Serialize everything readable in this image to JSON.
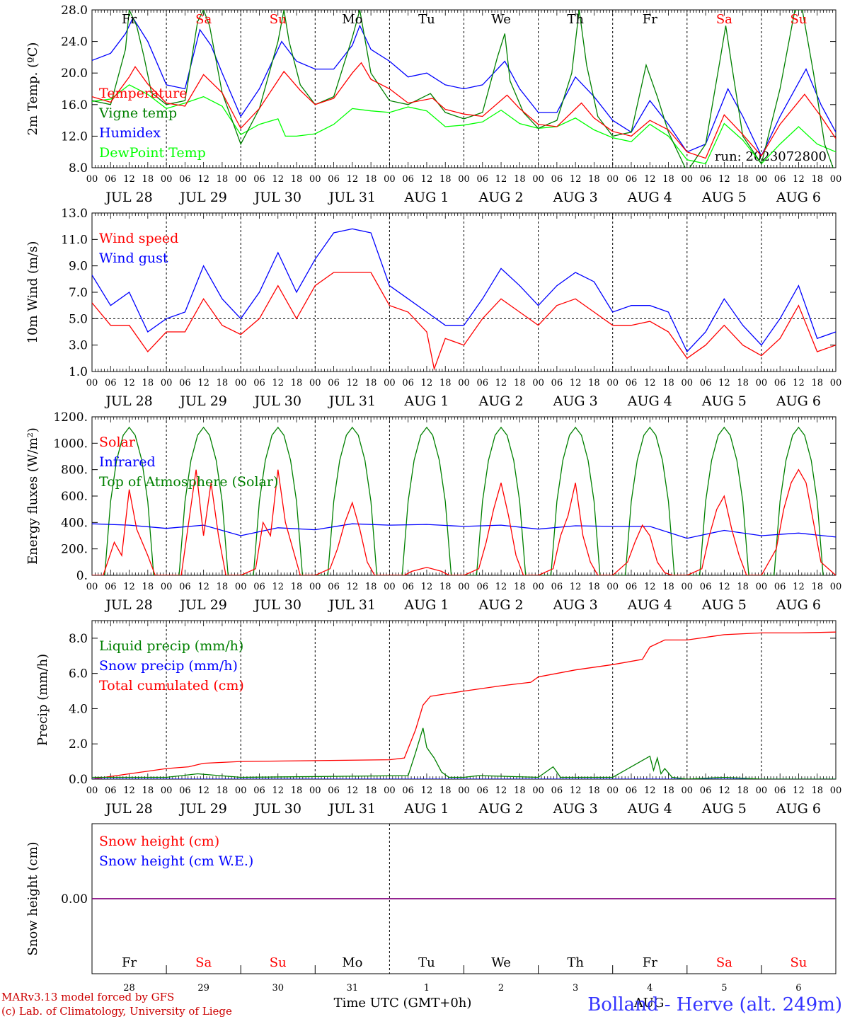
{
  "meteogram": {
    "days": [
      "JUL 28",
      "JUL 29",
      "JUL 30",
      "JUL 31",
      "AUG  1",
      "AUG  2",
      "AUG  3",
      "AUG  4",
      "AUG  5",
      "AUG  6"
    ],
    "weekdays": [
      "Fr",
      "Sa",
      "Su",
      "Mo",
      "Tu",
      "We",
      "Th",
      "Fr",
      "Sa",
      "Su"
    ],
    "day_numbers": [
      "28",
      "29",
      "30",
      "31",
      "1",
      "2",
      "3",
      "4",
      "5",
      "6"
    ],
    "hour_labels": [
      "00",
      "06",
      "12",
      "18"
    ],
    "final_hour_label": "00",
    "x_axis_label": "Time UTC (GMT+0h)",
    "month_label": "AUG",
    "run_label": "run: 2023072800",
    "station_label": "Bolland - Herve (alt. 249m)",
    "credit_lines": [
      "MARv3.13 model forced by GFS",
      "(c) Lab. of Climatology, University of Liege"
    ],
    "colors": {
      "red": "#ff0000",
      "dark_green": "#008000",
      "blue": "#0000ff",
      "light_green": "#00ff00",
      "purple": "#800080",
      "credit": "#cc0000",
      "station": "#3333ff"
    }
  },
  "chart_data": [
    {
      "type": "line",
      "ylabel": "2m Temp. (ºC)",
      "ylim": [
        8,
        28
      ],
      "yticks": [
        "8.0",
        "12.0",
        "16.0",
        "20.0",
        "24.0",
        "28.0"
      ],
      "series": [
        {
          "name": "Temperature",
          "color": "#ff0000",
          "x_days": [
            0,
            0.25,
            0.5,
            0.58,
            0.75,
            1.0,
            1.25,
            1.5,
            1.75,
            2.0,
            2.25,
            2.58,
            2.8,
            3.0,
            3.25,
            3.5,
            3.62,
            3.75,
            4.0,
            4.25,
            4.58,
            4.75,
            5.0,
            5.25,
            5.58,
            5.75,
            6.0,
            6.25,
            6.58,
            6.75,
            7.0,
            7.25,
            7.5,
            7.75,
            8.0,
            8.25,
            8.5,
            8.75,
            9.0,
            9.25,
            9.58,
            9.8,
            10.0
          ],
          "values": [
            17.0,
            16.3,
            19.5,
            20.8,
            18.6,
            16.2,
            15.8,
            19.8,
            17.5,
            13.0,
            15.5,
            20.2,
            17.8,
            16.0,
            16.8,
            20.0,
            21.3,
            19.2,
            18.0,
            16.2,
            16.8,
            15.4,
            14.8,
            14.5,
            17.2,
            15.5,
            13.5,
            13.2,
            16.2,
            14.3,
            12.6,
            12.0,
            14.0,
            12.8,
            10.0,
            9.2,
            14.7,
            12.2,
            9.5,
            13.5,
            17.3,
            14.5,
            11.7
          ]
        },
        {
          "name": "Vigne temp",
          "color": "#008000",
          "x_days": [
            0,
            0.25,
            0.45,
            0.5,
            0.6,
            0.7,
            0.8,
            1.0,
            1.25,
            1.42,
            1.5,
            1.58,
            1.75,
            2.0,
            2.25,
            2.5,
            2.58,
            2.65,
            2.8,
            3.0,
            3.25,
            3.5,
            3.6,
            3.75,
            4.0,
            4.25,
            4.55,
            4.75,
            5.0,
            5.25,
            5.45,
            5.55,
            5.62,
            5.8,
            6.0,
            6.25,
            6.45,
            6.55,
            6.65,
            6.8,
            7.0,
            7.25,
            7.45,
            7.6,
            7.75,
            8.0,
            8.25,
            8.45,
            8.52,
            8.6,
            8.75,
            9.0,
            9.25,
            9.45,
            9.55,
            9.7,
            9.85,
            10.0
          ],
          "values": [
            16.5,
            16.0,
            23.0,
            28.0,
            26.0,
            22.0,
            17.5,
            16.0,
            16.5,
            26.5,
            28.0,
            26.0,
            17.5,
            11.0,
            15.5,
            24.0,
            28.0,
            24.0,
            18.5,
            16.0,
            17.0,
            24.5,
            28.0,
            20.0,
            16.5,
            16.0,
            17.4,
            15.0,
            14.2,
            15.0,
            22.0,
            25.0,
            19.0,
            15.0,
            13.0,
            14.0,
            20.0,
            28.0,
            21.0,
            14.5,
            12.0,
            12.5,
            21.0,
            17.0,
            12.5,
            7.5,
            11.0,
            22.0,
            26.0,
            21.0,
            12.0,
            8.5,
            18.0,
            28.0,
            28.0,
            20.0,
            11.0,
            7.0
          ]
        },
        {
          "name": "Humidex",
          "color": "#0000ff",
          "x_days": [
            0,
            0.25,
            0.45,
            0.55,
            0.75,
            1.0,
            1.25,
            1.45,
            1.6,
            1.75,
            2.0,
            2.25,
            2.55,
            2.75,
            3.0,
            3.25,
            3.5,
            3.6,
            3.75,
            4.0,
            4.25,
            4.5,
            4.75,
            5.0,
            5.25,
            5.55,
            5.75,
            6.0,
            6.25,
            6.5,
            6.75,
            7.0,
            7.25,
            7.5,
            7.75,
            8.0,
            8.25,
            8.55,
            8.75,
            9.0,
            9.25,
            9.6,
            9.8,
            10.0
          ],
          "values": [
            21.6,
            22.5,
            25.0,
            27.0,
            24.0,
            18.5,
            18.0,
            25.5,
            23.5,
            20.0,
            14.5,
            18.0,
            24.0,
            21.5,
            20.5,
            20.5,
            23.5,
            26.0,
            23.0,
            21.5,
            19.5,
            20.0,
            18.5,
            18.0,
            18.5,
            21.5,
            18.0,
            15.0,
            15.0,
            19.5,
            17.0,
            14.0,
            12.5,
            16.5,
            13.5,
            10.0,
            11.0,
            18.0,
            14.5,
            9.5,
            14.5,
            20.5,
            16.0,
            12.5
          ]
        },
        {
          "name": "DewPoint Temp",
          "color": "#00ff00",
          "x_days": [
            0,
            0.25,
            0.5,
            0.75,
            1.0,
            1.25,
            1.5,
            1.75,
            2.0,
            2.25,
            2.5,
            2.6,
            2.75,
            3.0,
            3.25,
            3.5,
            3.75,
            4.0,
            4.25,
            4.5,
            4.75,
            5.0,
            5.25,
            5.5,
            5.75,
            6.0,
            6.25,
            6.5,
            6.75,
            7.0,
            7.25,
            7.5,
            7.75,
            8.0,
            8.25,
            8.5,
            8.75,
            9.0,
            9.25,
            9.5,
            9.75,
            10.0
          ],
          "values": [
            16.4,
            16.7,
            18.5,
            17.3,
            15.5,
            16.2,
            17.0,
            15.8,
            12.2,
            13.5,
            14.2,
            12.0,
            12.0,
            12.3,
            13.5,
            15.5,
            15.2,
            15.0,
            15.7,
            15.2,
            13.2,
            13.4,
            13.8,
            15.3,
            13.6,
            13.0,
            13.2,
            14.3,
            12.8,
            11.8,
            11.3,
            13.5,
            12.0,
            9.0,
            8.5,
            13.6,
            11.5,
            8.5,
            11.0,
            13.2,
            11.0,
            10.0
          ]
        }
      ]
    },
    {
      "type": "line",
      "ylabel": "10m Wind (m/s)",
      "ylim": [
        1,
        13
      ],
      "yticks": [
        "1.0",
        "3.0",
        "5.0",
        "7.0",
        "9.0",
        "11.0",
        "13.0"
      ],
      "reference_line": 5.0,
      "series": [
        {
          "name": "Wind speed",
          "color": "#ff0000",
          "x_days": [
            0,
            0.25,
            0.5,
            0.75,
            1.0,
            1.25,
            1.5,
            1.75,
            2.0,
            2.25,
            2.5,
            2.75,
            3.0,
            3.25,
            3.5,
            3.75,
            4.0,
            4.25,
            4.5,
            4.6,
            4.75,
            5.0,
            5.25,
            5.5,
            5.75,
            6.0,
            6.25,
            6.5,
            6.75,
            7.0,
            7.25,
            7.5,
            7.75,
            8.0,
            8.25,
            8.5,
            8.75,
            9.0,
            9.25,
            9.5,
            9.75,
            10.0
          ],
          "values": [
            6.2,
            4.5,
            4.5,
            2.5,
            4.0,
            4.0,
            6.5,
            4.5,
            3.8,
            5.0,
            7.5,
            5.0,
            7.5,
            8.5,
            8.5,
            8.5,
            6.0,
            5.5,
            4.0,
            1.2,
            3.5,
            3.0,
            5.0,
            6.5,
            5.5,
            4.5,
            6.0,
            6.5,
            5.5,
            4.5,
            4.5,
            4.8,
            4.0,
            2.0,
            3.0,
            4.5,
            3.0,
            2.2,
            3.5,
            6.0,
            2.5,
            3.0
          ]
        },
        {
          "name": "Wind gust",
          "color": "#0000ff",
          "x_days": [
            0,
            0.25,
            0.5,
            0.75,
            1.0,
            1.25,
            1.5,
            1.75,
            2.0,
            2.25,
            2.5,
            2.75,
            3.0,
            3.25,
            3.5,
            3.75,
            4.0,
            4.25,
            4.5,
            4.75,
            5.0,
            5.25,
            5.5,
            5.75,
            6.0,
            6.25,
            6.5,
            6.75,
            7.0,
            7.25,
            7.5,
            7.75,
            8.0,
            8.25,
            8.5,
            8.75,
            9.0,
            9.25,
            9.5,
            9.75,
            10.0
          ],
          "values": [
            8.3,
            6.0,
            7.0,
            4.0,
            5.0,
            5.5,
            9.0,
            6.5,
            5.0,
            7.0,
            10.0,
            7.0,
            9.5,
            11.5,
            11.8,
            11.5,
            7.5,
            6.5,
            5.5,
            4.5,
            4.5,
            6.5,
            8.8,
            7.5,
            6.0,
            7.5,
            8.5,
            7.8,
            5.5,
            6.0,
            6.0,
            5.5,
            2.5,
            4.0,
            6.5,
            4.5,
            3.0,
            5.0,
            7.5,
            3.5,
            4.0
          ]
        }
      ]
    },
    {
      "type": "line",
      "ylabel": "Energy fluxes (W/m²)",
      "ylim": [
        0,
        1200
      ],
      "yticks": [
        "0.",
        "200.",
        "400.",
        "600.",
        "800.",
        "1000.",
        "1200."
      ],
      "series": [
        {
          "name": "Solar",
          "color": "#ff0000",
          "x_days": [
            0,
            0.15,
            0.3,
            0.4,
            0.5,
            0.6,
            0.75,
            0.85,
            1.0,
            1.2,
            1.3,
            1.4,
            1.5,
            1.6,
            1.7,
            1.8,
            2.0,
            2.2,
            2.3,
            2.4,
            2.5,
            2.6,
            2.7,
            2.8,
            3.0,
            3.2,
            3.3,
            3.4,
            3.5,
            3.6,
            3.7,
            3.8,
            4.0,
            4.2,
            4.3,
            4.5,
            4.7,
            4.8,
            5.0,
            5.2,
            5.3,
            5.4,
            5.5,
            5.6,
            5.7,
            5.8,
            6.0,
            6.2,
            6.3,
            6.4,
            6.5,
            6.6,
            6.7,
            6.8,
            7.0,
            7.2,
            7.3,
            7.4,
            7.5,
            7.6,
            7.7,
            7.8,
            8.0,
            8.2,
            8.3,
            8.4,
            8.5,
            8.6,
            8.7,
            8.8,
            9.0,
            9.2,
            9.3,
            9.4,
            9.5,
            9.6,
            9.7,
            9.8,
            10.0
          ],
          "values": [
            0,
            0,
            250,
            150,
            650,
            350,
            150,
            0,
            0,
            0,
            400,
            800,
            300,
            700,
            300,
            0,
            0,
            50,
            400,
            300,
            800,
            400,
            200,
            0,
            0,
            50,
            200,
            400,
            550,
            350,
            100,
            0,
            0,
            0,
            30,
            60,
            30,
            0,
            0,
            50,
            250,
            500,
            700,
            450,
            150,
            0,
            0,
            50,
            300,
            450,
            700,
            300,
            100,
            0,
            0,
            100,
            250,
            380,
            300,
            100,
            20,
            0,
            0,
            50,
            300,
            500,
            600,
            350,
            150,
            0,
            0,
            200,
            500,
            700,
            800,
            700,
            400,
            100,
            0
          ]
        },
        {
          "name": "Infrared",
          "color": "#0000ff",
          "x_days": [
            0,
            0.5,
            1.0,
            1.5,
            2.0,
            2.5,
            3.0,
            3.5,
            4.0,
            4.5,
            5.0,
            5.5,
            6.0,
            6.5,
            7.0,
            7.5,
            8.0,
            8.5,
            9.0,
            9.5,
            10.0
          ],
          "values": [
            390,
            380,
            355,
            380,
            300,
            360,
            345,
            390,
            380,
            385,
            370,
            380,
            350,
            375,
            370,
            370,
            280,
            340,
            300,
            320,
            290
          ]
        },
        {
          "name": "Top of Atmosphere (Solar)",
          "color": "#008000",
          "x_days": [
            0.17,
            0.25,
            0.33,
            0.42,
            0.5,
            0.58,
            0.67,
            0.75,
            0.83
          ],
          "values": [
            0,
            560,
            870,
            1060,
            1120,
            1060,
            870,
            560,
            0
          ],
          "repeats_daily": true
        }
      ]
    },
    {
      "type": "line",
      "ylabel": "Precip (mm/h)",
      "ylim": [
        0,
        9
      ],
      "yticks": [
        "0.0",
        "2.0",
        "4.0",
        "6.0",
        "8.0"
      ],
      "series": [
        {
          "name": "Liquid precip (mm/h)",
          "color": "#008000",
          "x_days": [
            0,
            1.0,
            1.42,
            2.0,
            4.25,
            4.35,
            4.45,
            4.5,
            4.55,
            4.6,
            4.7,
            4.8,
            5.0,
            5.2,
            6.0,
            6.2,
            6.3,
            7.0,
            7.5,
            7.55,
            7.6,
            7.65,
            7.7,
            7.8,
            8.0,
            8.5,
            9.0,
            10.0
          ],
          "values": [
            0.1,
            0.1,
            0.3,
            0.1,
            0.2,
            1.5,
            2.9,
            1.8,
            1.5,
            1.2,
            0.4,
            0.1,
            0.1,
            0.2,
            0.1,
            0.7,
            0.1,
            0.1,
            1.3,
            0.5,
            1.2,
            0.3,
            0.6,
            0.1,
            0.0,
            0.1,
            0.0,
            0.0
          ]
        },
        {
          "name": "Snow precip (mm/h)",
          "color": "#0000ff",
          "x_days": [
            0,
            10
          ],
          "values": [
            0,
            0
          ]
        },
        {
          "name": "Total cumulated (cm)",
          "color": "#ff0000",
          "x_days": [
            0,
            0.5,
            1.0,
            1.3,
            1.5,
            2.0,
            3.0,
            4.0,
            4.2,
            4.35,
            4.45,
            4.55,
            4.7,
            5.0,
            5.5,
            5.9,
            6.0,
            6.5,
            7.0,
            7.4,
            7.5,
            7.7,
            8.0,
            8.5,
            9.0,
            9.5,
            10.0
          ],
          "values": [
            0.0,
            0.3,
            0.6,
            0.7,
            0.9,
            1.0,
            1.05,
            1.1,
            1.2,
            2.8,
            4.2,
            4.7,
            4.8,
            5.0,
            5.3,
            5.5,
            5.8,
            6.2,
            6.5,
            6.8,
            7.5,
            7.9,
            7.9,
            8.2,
            8.3,
            8.3,
            8.35
          ]
        }
      ]
    },
    {
      "type": "line",
      "ylabel": "Snow height (cm)",
      "yticks": [
        "0.00"
      ],
      "series": [
        {
          "name": "Snow height (cm)",
          "color": "#ff0000",
          "x_days": [
            0,
            10
          ],
          "values": [
            0,
            0
          ]
        },
        {
          "name": "Snow height (cm W.E.)",
          "color": "#0000ff",
          "x_days": [
            0,
            10
          ],
          "values": [
            0,
            0
          ]
        }
      ]
    }
  ]
}
